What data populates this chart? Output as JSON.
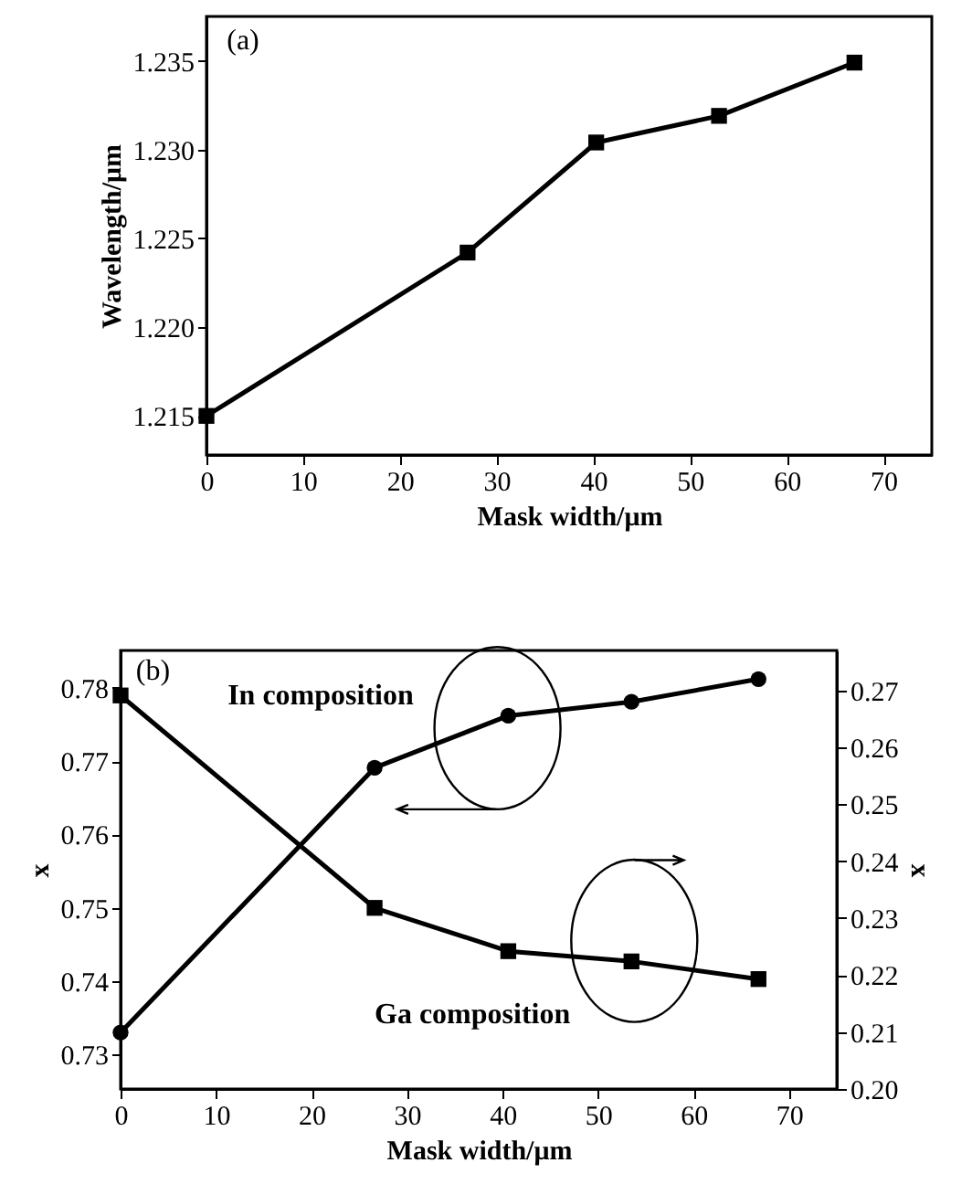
{
  "chart_data": [
    {
      "type": "line",
      "annotations": [
        "(a)"
      ],
      "xlabel": "Mask width/μm",
      "ylabel": "Wavelength/μm",
      "xlim": [
        0,
        75
      ],
      "xticks": [
        0,
        10,
        20,
        30,
        40,
        50,
        60,
        70
      ],
      "ylim": [
        1.2128,
        1.2375
      ],
      "yticks": [
        1.215,
        {
          "value": 1.22,
          "label": "1.220"
        },
        1.225,
        {
          "value": 1.23,
          "label": "1.230"
        },
        1.235
      ],
      "marker": "square",
      "x": [
        0,
        27,
        40.3,
        53,
        67
      ],
      "values": [
        1.215,
        1.2242,
        1.2304,
        1.2319,
        1.2349
      ],
      "color": "#000000"
    },
    {
      "type": "line",
      "annotations": [
        "(b)"
      ],
      "xlabel": "Mask width/μm",
      "ylabel": "x",
      "y2label": "x",
      "xlim": [
        0,
        75
      ],
      "xticks": [
        0,
        10,
        20,
        30,
        40,
        50,
        60,
        70
      ],
      "ylim": [
        0.7253,
        0.7851
      ],
      "yticks": [
        0.73,
        0.74,
        0.75,
        0.76,
        0.77,
        0.78
      ],
      "y2lim": [
        0.2,
        0.277
      ],
      "y2ticks": [
        {
          "value": 0.2,
          "label": "0.20"
        },
        0.21,
        0.22,
        0.23,
        0.24,
        0.25,
        0.26,
        0.27
      ],
      "x": [
        0,
        26.6,
        40.6,
        53.5,
        66.8
      ],
      "series": [
        {
          "name": "In composition",
          "color": "#000000",
          "marker": "circle",
          "values": [
            0.733,
            0.7691,
            0.7762,
            0.7781,
            0.7812
          ]
        },
        {
          "name": "Ga composition",
          "color": "#000000",
          "marker": "square",
          "axis": "y2",
          "values": [
            0.2691,
            0.2318,
            0.2242,
            0.2224,
            0.2193
          ]
        }
      ]
    }
  ]
}
